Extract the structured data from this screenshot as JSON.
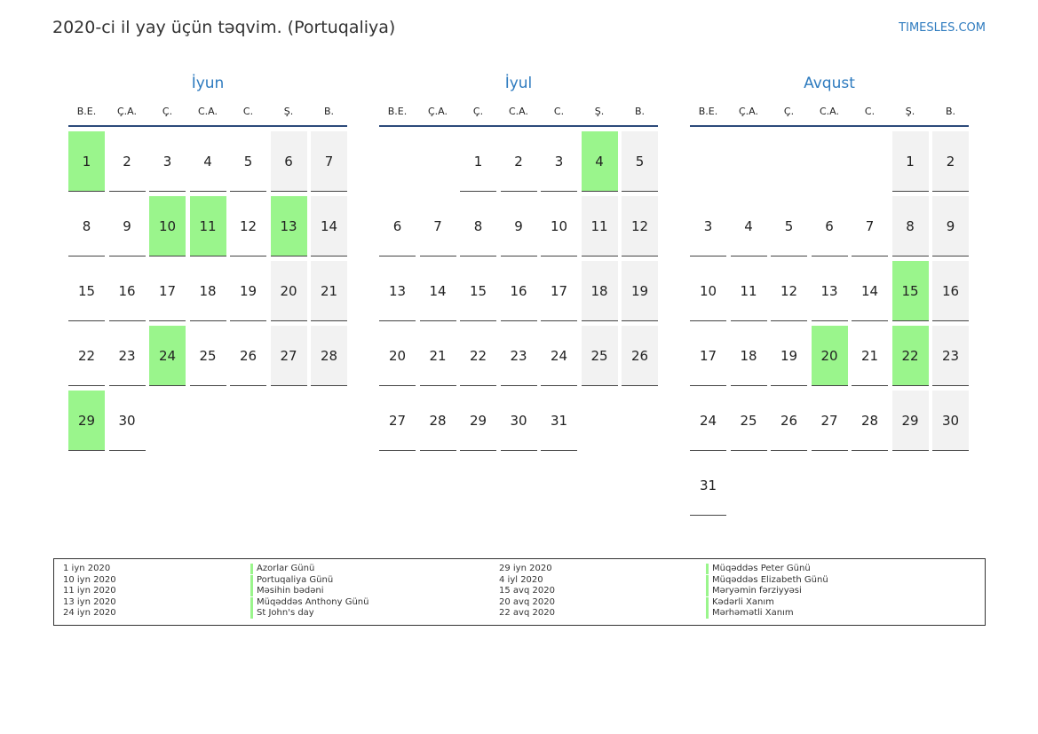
{
  "header": {
    "title": "2020-ci il yay üçün təqvim. (Portuqaliya)",
    "site": "TIMESLES.COM"
  },
  "months": [
    {
      "name": "İyun",
      "weekdays": [
        "B.E.",
        "Ç.A.",
        "Ç.",
        "C.A.",
        "C.",
        "Ş.",
        "B."
      ],
      "weeks": [
        [
          1,
          2,
          3,
          4,
          5,
          6,
          7
        ],
        [
          8,
          9,
          10,
          11,
          12,
          13,
          14
        ],
        [
          15,
          16,
          17,
          18,
          19,
          20,
          21
        ],
        [
          22,
          23,
          24,
          25,
          26,
          27,
          28
        ],
        [
          29,
          30
        ]
      ],
      "highlight": [
        1,
        10,
        11,
        13,
        24,
        29
      ]
    },
    {
      "name": "İyul",
      "weekdays": [
        "B.E.",
        "Ç.A.",
        "Ç.",
        "C.A.",
        "C.",
        "Ş.",
        "B."
      ],
      "weeks": [
        [
          null,
          null,
          1,
          2,
          3,
          4,
          5
        ],
        [
          6,
          7,
          8,
          9,
          10,
          11,
          12
        ],
        [
          13,
          14,
          15,
          16,
          17,
          18,
          19
        ],
        [
          20,
          21,
          22,
          23,
          24,
          25,
          26
        ],
        [
          27,
          28,
          29,
          30,
          31
        ]
      ],
      "highlight": [
        4
      ]
    },
    {
      "name": "Avqust",
      "weekdays": [
        "B.E.",
        "Ç.A.",
        "Ç.",
        "C.A.",
        "C.",
        "Ş.",
        "B."
      ],
      "weeks": [
        [
          null,
          null,
          null,
          null,
          null,
          1,
          2
        ],
        [
          3,
          4,
          5,
          6,
          7,
          8,
          9
        ],
        [
          10,
          11,
          12,
          13,
          14,
          15,
          16
        ],
        [
          17,
          18,
          19,
          20,
          21,
          22,
          23
        ],
        [
          24,
          25,
          26,
          27,
          28,
          29,
          30
        ],
        [
          31
        ]
      ],
      "highlight": [
        15,
        20,
        22
      ]
    }
  ],
  "holidays": [
    {
      "date": "1 iyn 2020",
      "name": "Azorlar Günü"
    },
    {
      "date": "10 iyn 2020",
      "name": "Portuqaliya Günü"
    },
    {
      "date": "11 iyn 2020",
      "name": "Məsihin bədəni"
    },
    {
      "date": "13 iyn 2020",
      "name": "Müqəddəs Anthony Günü"
    },
    {
      "date": "24 iyn 2020",
      "name": "St John's day"
    },
    {
      "date": "29 iyn 2020",
      "name": "Müqəddəs Peter Günü"
    },
    {
      "date": "4 iyl 2020",
      "name": "Müqəddəs Elizabeth Günü"
    },
    {
      "date": "15 avq 2020",
      "name": "Məryəmin fərziyyəsi"
    },
    {
      "date": "20 avq 2020",
      "name": "Kədərli Xanım"
    },
    {
      "date": "22 avq 2020",
      "name": "Mərhəmətli Xanım"
    }
  ]
}
